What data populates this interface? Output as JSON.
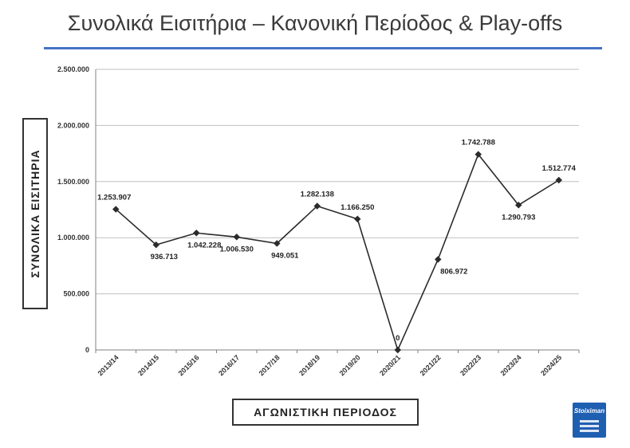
{
  "title": "Συνολικά Εισιτήρια – Κανονική Περίοδος & Play-offs",
  "colors": {
    "accent": "#4472c4",
    "line": "#2b2b2b",
    "logo": "#1f5fb2"
  },
  "logo": {
    "text": "Stoiximan",
    "icon": "stoiximan-logo"
  },
  "chart_data": {
    "type": "line",
    "title": "Συνολικά Εισιτήρια – Κανονική Περίοδος & Play-offs",
    "xlabel": "ΑΓΩΝΙΣΤΙΚΗ ΠΕΡΙΟΔΟΣ",
    "ylabel": "ΣΥΝΟΛΙΚΑ ΕΙΣΙΤΗΡΙΑ",
    "ylim": [
      0,
      2500000
    ],
    "yticks": [
      0,
      500000,
      1000000,
      1500000,
      2000000,
      2500000
    ],
    "ytick_labels": [
      "0",
      "500.000",
      "1.000.000",
      "1.500.000",
      "2.000.000",
      "2.500.000"
    ],
    "grid": true,
    "categories": [
      "2013/14",
      "2014/15",
      "2015/16",
      "2016/17",
      "2017/18",
      "2018/19",
      "2019/20",
      "2020/21",
      "2021/22",
      "2022/23",
      "2023/24",
      "2024/25"
    ],
    "values": [
      1253907,
      936713,
      1042228,
      1006530,
      949051,
      1282138,
      1166250,
      0,
      806972,
      1742788,
      1290793,
      1512774
    ],
    "data_labels": [
      "1.253.907",
      "936.713",
      "1.042.228",
      "1.006.530",
      "949.051",
      "1.282.138",
      "1.166.250",
      "0",
      "806.972",
      "1.742.788",
      "1.290.793",
      "1.512.774"
    ]
  }
}
